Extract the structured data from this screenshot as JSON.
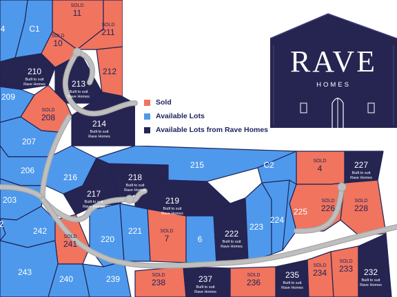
{
  "colors": {
    "sold": "#F0745E",
    "available": "#4E99EC",
    "rave": "#262552",
    "road": "#BFBFBF",
    "lot_border": "#1E2257",
    "text_light": "#FFFFFF",
    "text_dark": "#1E2257",
    "background": "#FFFFFF"
  },
  "legend": {
    "items": [
      {
        "label": "Sold",
        "color": "#F0745E"
      },
      {
        "label": "Available Lots",
        "color": "#4E99EC"
      },
      {
        "label": "Available Lots from Rave Homes",
        "color": "#262552"
      }
    ]
  },
  "brand": {
    "logo_name": "RAVE",
    "logo_sub": "HOMES"
  },
  "map": {
    "sold_label": "SOLD",
    "built_to_suit_label": "Built to suit",
    "rave_homes_label": "Rave Homes",
    "lots": [
      {
        "id": "11",
        "status": "sold"
      },
      {
        "id": "211",
        "status": "sold"
      },
      {
        "id": "C1",
        "status": "available"
      },
      {
        "id": "4",
        "status": "available",
        "display": "4"
      },
      {
        "id": "10",
        "status": "sold"
      },
      {
        "id": "212",
        "status": "sold",
        "show_sold": false
      },
      {
        "id": "210",
        "status": "rave"
      },
      {
        "id": "213",
        "status": "rave"
      },
      {
        "id": "209",
        "status": "available"
      },
      {
        "id": "208",
        "status": "sold"
      },
      {
        "id": "214",
        "status": "rave"
      },
      {
        "id": "207",
        "status": "available"
      },
      {
        "id": "206",
        "status": "available"
      },
      {
        "id": "216",
        "status": "available"
      },
      {
        "id": "203",
        "status": "available"
      },
      {
        "id": "217",
        "status": "rave"
      },
      {
        "id": "218",
        "status": "rave"
      },
      {
        "id": "215",
        "status": "available"
      },
      {
        "id": "C2",
        "status": "available"
      },
      {
        "id": "SOLD 4",
        "status": "sold",
        "display": "4"
      },
      {
        "id": "227",
        "status": "rave"
      },
      {
        "id": "219",
        "status": "rave"
      },
      {
        "id": "226",
        "status": "sold"
      },
      {
        "id": "228",
        "status": "sold"
      },
      {
        "id": "242",
        "status": "available"
      },
      {
        "id": "241",
        "status": "sold"
      },
      {
        "id": "220",
        "status": "available"
      },
      {
        "id": "221",
        "status": "available"
      },
      {
        "id": "7",
        "status": "sold"
      },
      {
        "id": "6",
        "status": "available"
      },
      {
        "id": "222",
        "status": "rave"
      },
      {
        "id": "223",
        "status": "available"
      },
      {
        "id": "224",
        "status": "available"
      },
      {
        "id": "225",
        "status": "available"
      },
      {
        "id": "243",
        "status": "available"
      },
      {
        "id": "240",
        "status": "available"
      },
      {
        "id": "239",
        "status": "available"
      },
      {
        "id": "238",
        "status": "sold"
      },
      {
        "id": "237",
        "status": "rave"
      },
      {
        "id": "236",
        "status": "sold"
      },
      {
        "id": "235",
        "status": "rave"
      },
      {
        "id": "234",
        "status": "sold"
      },
      {
        "id": "233",
        "status": "sold"
      },
      {
        "id": "232",
        "status": "rave"
      },
      {
        "id": "2",
        "status": "available"
      }
    ]
  }
}
